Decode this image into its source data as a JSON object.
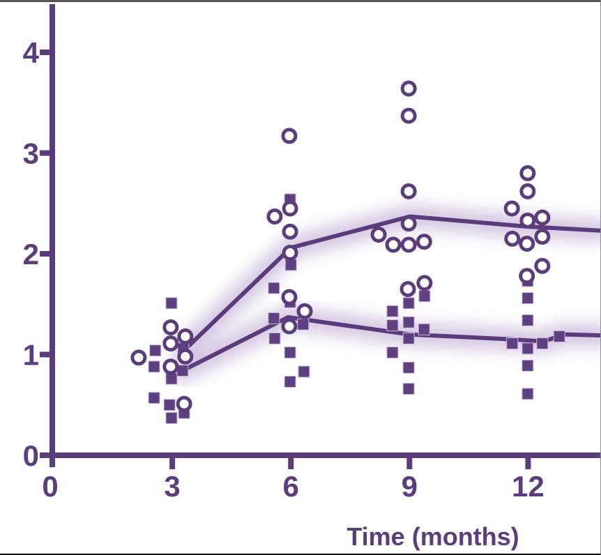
{
  "window": {
    "top_border_color": "#565656",
    "bottom_border_color": "#141414",
    "right_border_color": "#8e8e8e"
  },
  "chart_data": {
    "type": "scatter",
    "title": "",
    "xlabel": "Time (months)",
    "ylabel": "",
    "xlim": [
      0,
      13.85
    ],
    "ylim": [
      0,
      4.47
    ],
    "x_ticks": [
      0,
      3,
      6,
      9,
      12
    ],
    "y_ticks": [
      0,
      1,
      2,
      3,
      4
    ],
    "grid": false,
    "legend_position": "none",
    "colors": {
      "primary": "#5c3d7c",
      "line": "#5a3c7c",
      "square_fill": "#5f4181",
      "square_edge": "#c9bbd9",
      "circle_ring": "#5c3d7c",
      "circle_fill": "#ffffff",
      "glow": "#b49dcc",
      "background": "#ffffff"
    },
    "series": [
      {
        "name": "open-circles",
        "marker": "circle",
        "points": [
          [
            2.15,
            0.97
          ],
          [
            2.96,
            1.27
          ],
          [
            3.33,
            1.18
          ],
          [
            2.96,
            1.11
          ],
          [
            3.33,
            0.98
          ],
          [
            2.96,
            0.88
          ],
          [
            3.3,
            0.51
          ],
          [
            5.96,
            3.17
          ],
          [
            5.98,
            2.45
          ],
          [
            5.59,
            2.37
          ],
          [
            5.98,
            2.22
          ],
          [
            5.98,
            2.01
          ],
          [
            5.96,
            1.57
          ],
          [
            6.35,
            1.43
          ],
          [
            5.96,
            1.28
          ],
          [
            8.98,
            3.64
          ],
          [
            8.98,
            3.37
          ],
          [
            8.98,
            2.62
          ],
          [
            8.98,
            2.3
          ],
          [
            8.22,
            2.19
          ],
          [
            8.59,
            2.09
          ],
          [
            8.98,
            2.09
          ],
          [
            9.37,
            2.12
          ],
          [
            9.38,
            1.71
          ],
          [
            8.96,
            1.65
          ],
          [
            11.99,
            2.8
          ],
          [
            11.99,
            2.62
          ],
          [
            11.59,
            2.45
          ],
          [
            12.36,
            2.36
          ],
          [
            11.99,
            2.33
          ],
          [
            12.36,
            2.17
          ],
          [
            11.6,
            2.15
          ],
          [
            11.97,
            2.1
          ],
          [
            12.36,
            1.88
          ],
          [
            11.97,
            1.78
          ]
        ]
      },
      {
        "name": "filled-squares",
        "marker": "square",
        "points": [
          [
            2.98,
            1.51
          ],
          [
            2.57,
            1.04
          ],
          [
            3.28,
            1.06
          ],
          [
            2.54,
            0.88
          ],
          [
            3.26,
            0.84
          ],
          [
            2.98,
            0.76
          ],
          [
            2.54,
            0.57
          ],
          [
            2.93,
            0.5
          ],
          [
            3.3,
            0.42
          ],
          [
            2.98,
            0.37
          ],
          [
            5.98,
            2.54
          ],
          [
            6.0,
            1.89
          ],
          [
            5.57,
            1.66
          ],
          [
            5.98,
            1.52
          ],
          [
            5.57,
            1.36
          ],
          [
            6.31,
            1.3
          ],
          [
            5.59,
            1.16
          ],
          [
            5.98,
            1.02
          ],
          [
            6.33,
            0.83
          ],
          [
            5.98,
            0.73
          ],
          [
            9.38,
            1.58
          ],
          [
            8.98,
            1.51
          ],
          [
            8.57,
            1.43
          ],
          [
            8.98,
            1.32
          ],
          [
            8.57,
            1.29
          ],
          [
            9.37,
            1.25
          ],
          [
            8.98,
            1.16
          ],
          [
            8.57,
            1.02
          ],
          [
            8.98,
            0.87
          ],
          [
            8.98,
            0.66
          ],
          [
            11.99,
            1.73
          ],
          [
            11.99,
            1.56
          ],
          [
            11.99,
            1.34
          ],
          [
            11.6,
            1.11
          ],
          [
            12.36,
            1.11
          ],
          [
            11.99,
            1.06
          ],
          [
            12.79,
            1.18
          ],
          [
            11.99,
            0.89
          ],
          [
            11.99,
            0.61
          ]
        ]
      }
    ],
    "mean_lines": [
      {
        "name": "upper-mean-line",
        "points": [
          [
            3.32,
            1.05
          ],
          [
            6.0,
            2.06
          ],
          [
            9.01,
            2.37
          ],
          [
            11.99,
            2.27
          ],
          [
            13.85,
            2.23
          ]
        ]
      },
      {
        "name": "lower-mean-line",
        "points": [
          [
            3.26,
            0.84
          ],
          [
            5.93,
            1.37
          ],
          [
            9.0,
            1.2
          ],
          [
            11.6,
            1.15
          ],
          [
            12.4,
            1.13
          ],
          [
            12.9,
            1.2
          ],
          [
            13.85,
            1.19
          ]
        ]
      }
    ]
  }
}
